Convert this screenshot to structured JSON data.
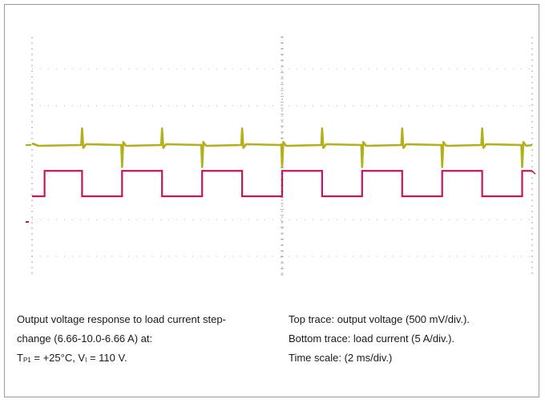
{
  "colors": {
    "voltage_trace": "#b3b01c",
    "current_trace": "#c2185b",
    "grid_line": "#9e9e9e",
    "grid_dot": "#b5b5b5",
    "frame": "#9a9a9a"
  },
  "caption": {
    "left_line1": "Output voltage response to load current step-",
    "left_line2": "change (6.66-10.0-6.66 A) at:",
    "left_line3_T": "T",
    "left_line3_Tsub": "P1",
    "left_line3_mid": " = +25°C, V",
    "left_line3_Vsub": "I",
    "left_line3_end": " = 110 V.",
    "right_line1": "Top trace: output voltage (500 mV/div.).",
    "right_line2": "Bottom trace: load current (5 A/div.).",
    "right_line3": "Time scale: (2 ms/div.)"
  },
  "chart_data": {
    "type": "line",
    "time_scale": "2 ms/div.",
    "x_unit": "ms",
    "x_divisions": 10,
    "xlim": [
      0,
      20
    ],
    "series": [
      {
        "name": "Top trace: output voltage (500 mV/div.)",
        "kind": "voltage",
        "color": "#b3b01c",
        "level_div": 0.6,
        "spike_up_div": 0.45,
        "spike_down_div": 0.6,
        "dip_div": 0.08,
        "events_ms": [
          2.0,
          3.6,
          5.2,
          6.8,
          8.4,
          10.0,
          11.6,
          13.2,
          14.8,
          16.4,
          18.0,
          19.6
        ],
        "event_types": [
          "up",
          "down",
          "up",
          "down",
          "up",
          "down",
          "up",
          "down",
          "up",
          "down",
          "up",
          "down"
        ]
      },
      {
        "name": "Bottom trace: load current (5 A/div.)",
        "kind": "current",
        "color": "#c2185b",
        "low_A": 6.66,
        "high_A": 10.0,
        "transitions_ms": [
          0.5,
          2.0,
          3.6,
          5.2,
          6.8,
          8.4,
          10.0,
          11.6,
          13.2,
          14.8,
          16.4,
          18.0,
          19.6
        ],
        "start_level": "low"
      }
    ]
  }
}
